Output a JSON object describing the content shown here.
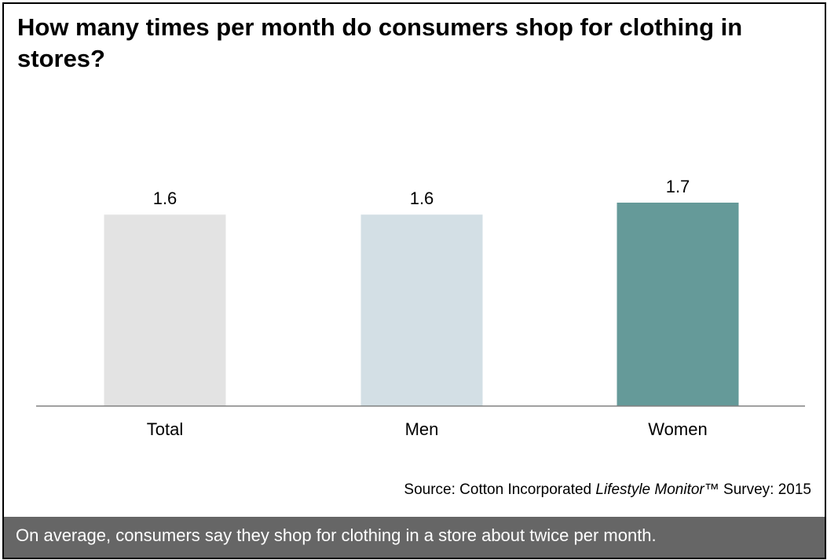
{
  "chart_data": {
    "type": "bar",
    "title": "How many times per month do consumers shop for clothing in stores?",
    "categories": [
      "Total",
      "Men",
      "Women"
    ],
    "values": [
      1.6,
      1.6,
      1.7
    ],
    "data_labels": [
      "1.6",
      "1.6",
      "1.7"
    ],
    "bar_colors": [
      "#e3e3e3",
      "#d3dfe5",
      "#659a99"
    ],
    "ylim": [
      0,
      1.7
    ],
    "grid": false,
    "legend": "none"
  },
  "source": {
    "prefix": "Source: Cotton Incorporated ",
    "italic": "Lifestyle Monitor",
    "suffix": "™ Survey: 2015"
  },
  "footer": {
    "text": "On average, consumers say they shop for clothing in a store about twice per month."
  }
}
